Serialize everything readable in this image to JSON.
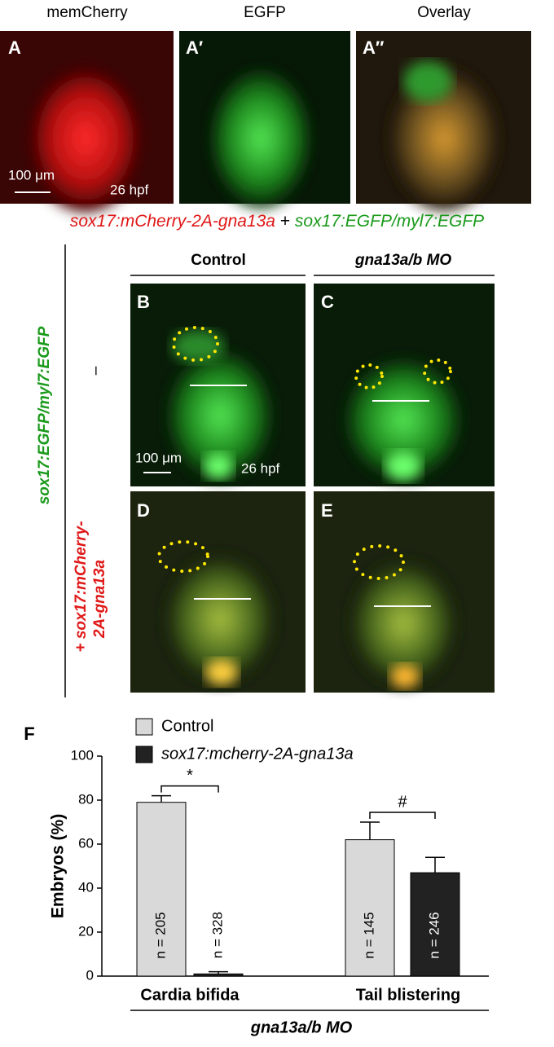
{
  "top_row": {
    "columns": [
      "memCherry",
      "EGFP",
      "Overlay"
    ],
    "panel_letters": [
      "A",
      "A′",
      "A″"
    ],
    "scale_bar": "100 μm",
    "stage": "26 hpf"
  },
  "construct_caption": {
    "red": "sox17:mCherry-2A-gna13a",
    "plus": "+",
    "green": "sox17:EGFP/myl7:EGFP"
  },
  "middle": {
    "column_headers": [
      "Control",
      "gna13a/b MO"
    ],
    "row_labels": {
      "green": "sox17:EGFP/myl7:EGFP",
      "minus": "–",
      "red_line1": "+ sox17:mCherry-",
      "red_line2": "2A-gna13a"
    },
    "panel_letters": [
      "B",
      "C",
      "D",
      "E"
    ],
    "scale_bar": "100 μm",
    "stage": "26 hpf"
  },
  "chart_data": {
    "type": "bar",
    "panel_label": "F",
    "ylabel": "Embryos (%)",
    "categories": [
      "Cardia bifida",
      "Tail blistering"
    ],
    "series": [
      {
        "name": "Control",
        "color": "#d9d9d9",
        "values": [
          79,
          62
        ],
        "errors": [
          3,
          8
        ],
        "n_labels": [
          "n = 205",
          "n = 145"
        ]
      },
      {
        "name": "sox17:mcherry-2A-gna13a",
        "color": "#222222",
        "values": [
          1,
          47
        ],
        "errors": [
          1,
          7
        ],
        "n_labels": [
          "n = 328",
          "n = 246"
        ]
      }
    ],
    "significance": [
      "*",
      "#"
    ],
    "group_label": "gna13a/b MO",
    "ylim": [
      0,
      100
    ],
    "yticks": [
      0,
      20,
      40,
      60,
      80,
      100
    ]
  }
}
